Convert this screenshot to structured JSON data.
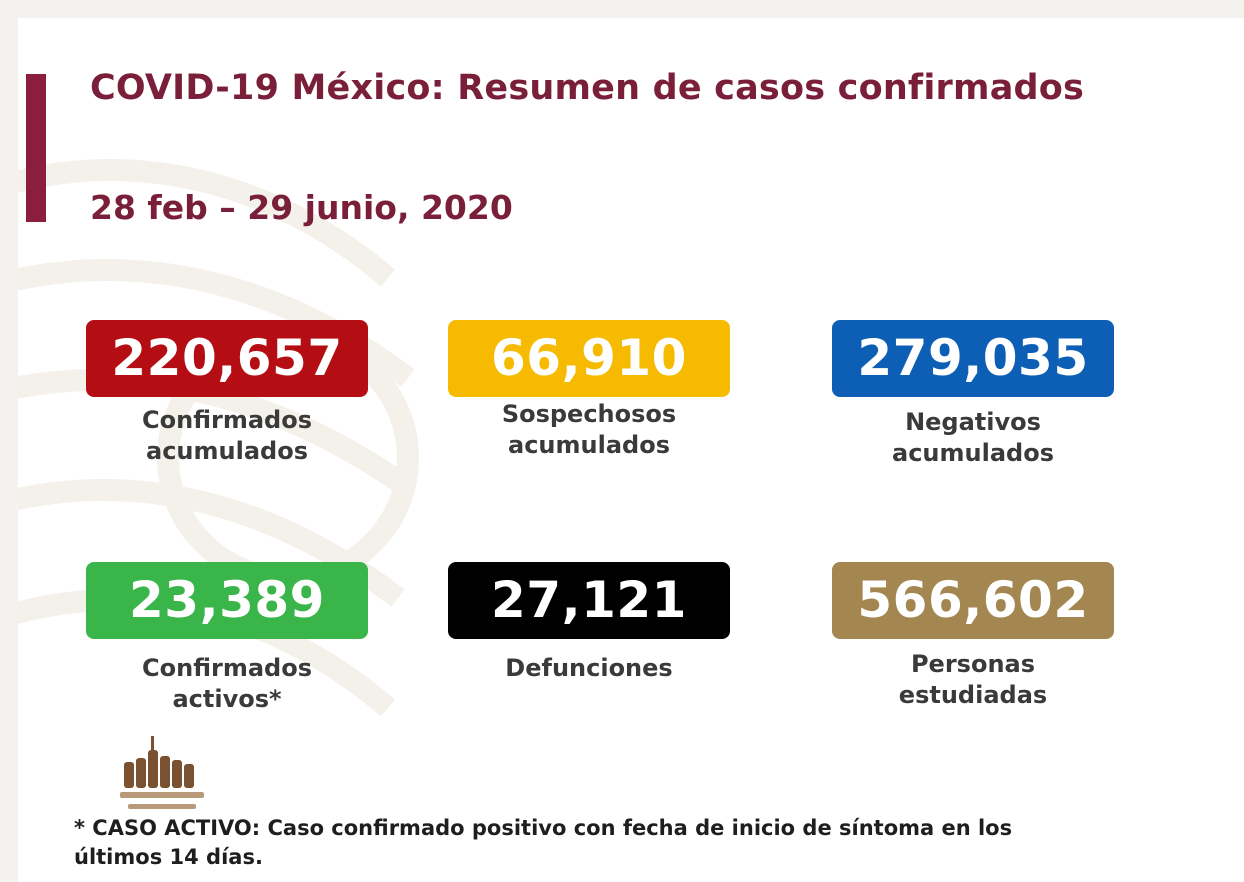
{
  "header": {
    "title": "COVID-19 México: Resumen de casos confirmados",
    "date_range": "28 feb – 29 junio, 2020"
  },
  "stats": [
    {
      "value": "220,657",
      "label_line1": "Confirmados",
      "label_line2": "acumulados",
      "color": "#b50d14"
    },
    {
      "value": "66,910",
      "label_line1": "Sospechosos",
      "label_line2": "acumulados",
      "color": "#f6bb00"
    },
    {
      "value": "279,035",
      "label_line1": "Negativos",
      "label_line2": "acumulados",
      "color": "#0c5fb5"
    },
    {
      "value": "23,389",
      "label_line1": "Confirmados",
      "label_line2": "activos*",
      "color": "#3ab54a"
    },
    {
      "value": "27,121",
      "label_line1": "Defunciones",
      "label_line2": "",
      "color": "#000000"
    },
    {
      "value": "566,602",
      "label_line1": "Personas",
      "label_line2": "estudiadas",
      "color": "#a38650"
    }
  ],
  "footnote": {
    "line1": "* CASO ACTIVO: Caso confirmado positivo con fecha de inicio de síntoma en los",
    "line2": "últimos 14 días."
  },
  "colors": {
    "accent": "#8b1e3f",
    "title_text": "#7a1f3a"
  },
  "icons": {
    "logo": "government-heroes-logo-icon",
    "watermark": "eagle-watermark-icon"
  }
}
